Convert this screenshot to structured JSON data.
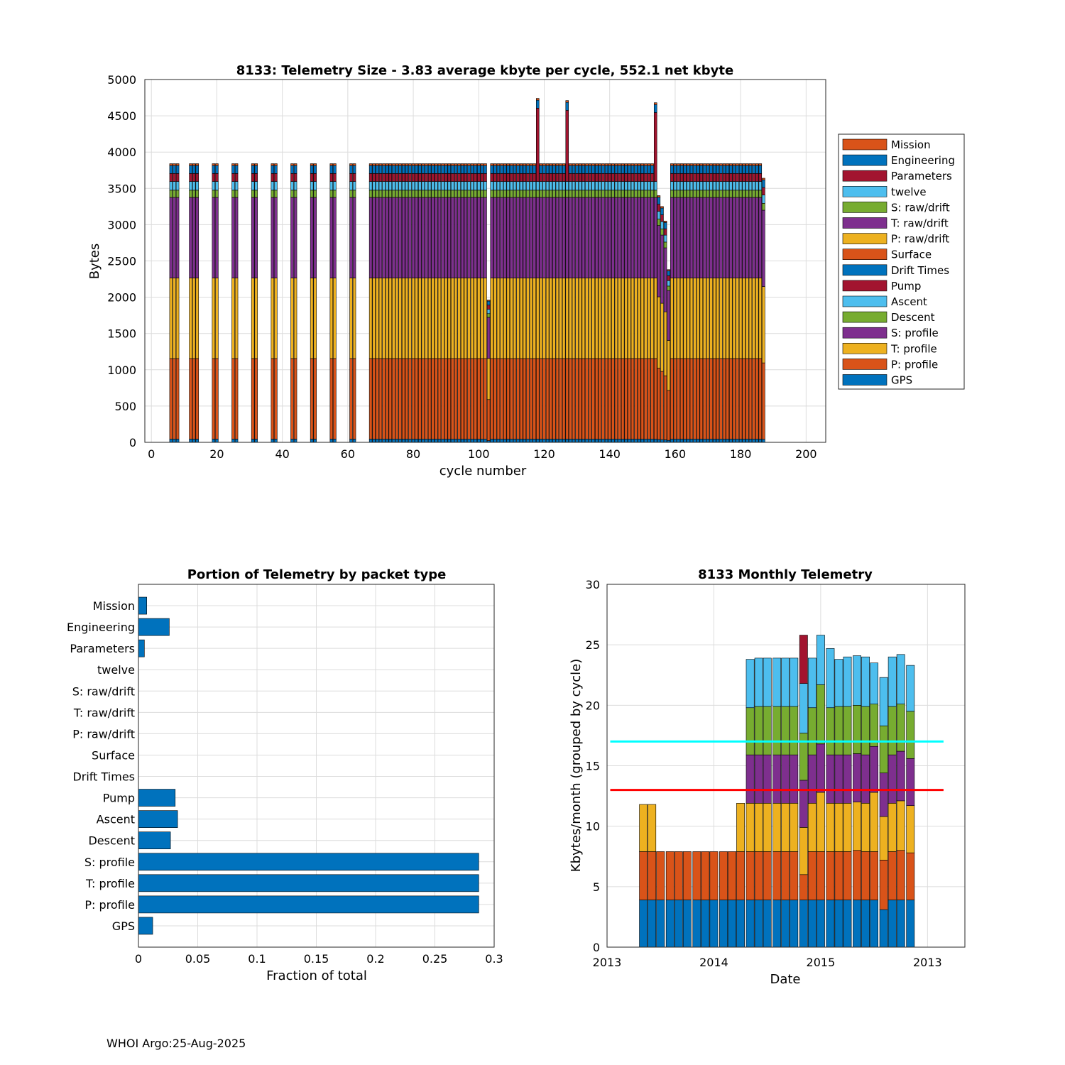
{
  "footer": "WHOI Argo:25-Aug-2025",
  "colors": {
    "blue": "#0072BD",
    "orange": "#D95319",
    "yellow": "#EDB120",
    "purple": "#7E2F8E",
    "green": "#77AC30",
    "cyan": "#4DBEEE",
    "red": "#A2142F",
    "grid": "#dcdcdc",
    "limit_cyan": "#00FFFF",
    "limit_red": "#FF0000"
  },
  "chart_data": [
    {
      "type": "bar",
      "stacked": true,
      "title": "8133: Telemetry Size - 3.83 average kbyte per cycle,  552.1 net kbyte",
      "xlabel": "cycle number",
      "ylabel": "Bytes",
      "xlim": [
        -2,
        206
      ],
      "ylim": [
        0,
        5000
      ],
      "xticks": [
        "0",
        "20",
        "40",
        "60",
        "80",
        "100",
        "120",
        "140",
        "160",
        "180",
        "200"
      ],
      "yticks": [
        "0",
        "500",
        "1000",
        "1500",
        "2000",
        "2500",
        "3000",
        "3500",
        "4000",
        "4500",
        "5000"
      ],
      "grid": true,
      "legend_position": "outside-right",
      "legend": [
        "Mission",
        "Engineering",
        "Parameters",
        "twelve",
        "S: raw/drift",
        "T: raw/drift",
        "P: raw/drift",
        "Surface",
        "Drift Times",
        "Pump",
        "Ascent",
        "Descent",
        "S: profile",
        "T: profile",
        "P: profile",
        "GPS"
      ],
      "cycles_in_groups": [
        [
          6,
          8
        ],
        [
          12,
          14
        ],
        [
          19,
          20
        ],
        [
          25,
          26
        ],
        [
          31,
          32
        ],
        [
          37,
          38
        ],
        [
          43,
          44
        ],
        [
          49,
          50
        ],
        [
          55,
          56
        ],
        [
          61,
          62
        ],
        [
          67,
          187
        ]
      ],
      "typical_cycle": {
        "GPS": 45,
        "P: profile": 1110,
        "T: profile": 1110,
        "S: profile": 1110,
        "Descent": 100,
        "Ascent": 120,
        "Pump": 110,
        "Engineering": 110,
        "Parameters": 0,
        "Mission": 25
      },
      "anomalies": [
        {
          "cycle": 103,
          "total": 1960
        },
        {
          "cycle": 118,
          "total": 4690,
          "pump": 1010
        },
        {
          "cycle": 127,
          "total": 4660,
          "pump": 980
        },
        {
          "cycle": 154,
          "total": 4610,
          "pump": 950
        },
        {
          "cycle": 155,
          "total": 3400
        },
        {
          "cycle": 156,
          "total": 3250
        },
        {
          "cycle": 157,
          "total": 3050
        },
        {
          "cycle": 158,
          "total": 2380
        },
        {
          "cycle": 187,
          "total": 3640
        }
      ]
    },
    {
      "type": "bar",
      "orientation": "horizontal",
      "title": "Portion of Telemetry by packet type",
      "xlabel": "Fraction of total",
      "xlim": [
        0,
        0.3
      ],
      "xticks": [
        "0",
        "0.05",
        "0.1",
        "0.15",
        "0.2",
        "0.25",
        "0.3"
      ],
      "grid": true,
      "categories": [
        "Mission",
        "Engineering",
        "Parameters",
        "twelve",
        "S: raw/drift",
        "T: raw/drift",
        "P: raw/drift",
        "Surface",
        "Drift Times",
        "Pump",
        "Ascent",
        "Descent",
        "S: profile",
        "T: profile",
        "P: profile",
        "GPS"
      ],
      "values": [
        0.007,
        0.026,
        0.005,
        0,
        0,
        0,
        0,
        0,
        0,
        0.031,
        0.033,
        0.027,
        0.287,
        0.287,
        0.287,
        0.012
      ]
    },
    {
      "type": "bar",
      "stacked": true,
      "title": "8133 Monthly Telemetry",
      "xlabel": "Date",
      "ylabel": "Kbytes/month (grouped by cycle)",
      "ylim": [
        0,
        30
      ],
      "yticks": [
        "0",
        "5",
        "10",
        "15",
        "20",
        "25",
        "30"
      ],
      "xtick_labels": [
        "2013",
        "2014",
        "2015",
        "2013"
      ],
      "xtick_positions": [
        0,
        1,
        2,
        3
      ],
      "xlim": [
        0,
        3.35
      ],
      "grid": true,
      "bar_positions": [
        0.34,
        0.42,
        0.5,
        0.59,
        0.67,
        0.75,
        0.84,
        0.92,
        1.0,
        1.09,
        1.17,
        1.25,
        1.34,
        1.42,
        1.5,
        1.59,
        1.67,
        1.75,
        1.84,
        1.92,
        2.0,
        2.09,
        2.17,
        2.25,
        2.34,
        2.42,
        2.5,
        2.59,
        2.67,
        2.75,
        2.84
      ],
      "series": [
        {
          "name": "GPS",
          "color": "blue",
          "values": [
            3.9,
            3.9,
            3.9,
            3.9,
            3.9,
            3.9,
            3.9,
            3.9,
            3.9,
            3.9,
            3.9,
            3.9,
            3.9,
            3.9,
            3.9,
            3.9,
            3.9,
            3.9,
            3.9,
            3.9,
            3.9,
            3.9,
            3.9,
            3.9,
            3.9,
            3.9,
            3.9,
            3.1,
            3.9,
            3.9,
            3.9
          ]
        },
        {
          "name": "P: profile",
          "color": "orange",
          "values": [
            4.0,
            4.0,
            4.0,
            4.0,
            4.0,
            4.0,
            4.0,
            4.0,
            4.0,
            4.0,
            4.0,
            4.0,
            4.0,
            4.0,
            4.0,
            4.0,
            4.0,
            4.0,
            2.1,
            4.0,
            4.0,
            4.0,
            4.0,
            4.0,
            4.1,
            4.0,
            4.0,
            4.1,
            4.0,
            4.1,
            3.9
          ]
        },
        {
          "name": "T: profile",
          "color": "yellow",
          "values": [
            3.9,
            3.9,
            0,
            0,
            0,
            0,
            0,
            0,
            0,
            0,
            0,
            4.0,
            4.0,
            4.0,
            4.0,
            4.0,
            4.0,
            4.0,
            3.9,
            4.0,
            4.9,
            4.0,
            4.0,
            4.0,
            4.0,
            4.0,
            4.9,
            3.6,
            4.0,
            4.1,
            3.9
          ]
        },
        {
          "name": "S: profile",
          "color": "purple",
          "values": [
            0,
            0,
            0,
            0,
            0,
            0,
            0,
            0,
            0,
            0,
            0,
            0,
            4.0,
            4.0,
            4.0,
            4.0,
            4.0,
            4.0,
            3.9,
            4.0,
            4.0,
            4.0,
            4.0,
            4.0,
            4.0,
            4.0,
            3.8,
            3.6,
            4.0,
            4.1,
            3.9
          ]
        },
        {
          "name": "Descent",
          "color": "green",
          "values": [
            0,
            0,
            0,
            0,
            0,
            0,
            0,
            0,
            0,
            0,
            0,
            0,
            3.9,
            4.0,
            4.0,
            4.0,
            4.0,
            4.0,
            3.9,
            3.9,
            4.9,
            3.9,
            4.0,
            4.0,
            4.0,
            4.0,
            3.5,
            3.9,
            4.0,
            3.9,
            3.9
          ]
        },
        {
          "name": "Ascent",
          "color": "cyan",
          "values": [
            0,
            0,
            0,
            0,
            0,
            0,
            0,
            0,
            0,
            0,
            0,
            0,
            4.0,
            4.0,
            4.0,
            4.0,
            4.0,
            4.0,
            4.1,
            4.1,
            4.1,
            4.9,
            3.9,
            4.1,
            4.1,
            4.1,
            3.4,
            4.0,
            4.1,
            4.1,
            3.8
          ]
        },
        {
          "name": "Pump",
          "color": "red",
          "values": [
            0,
            0,
            0,
            0,
            0,
            0,
            0,
            0,
            0,
            0,
            0,
            0,
            0,
            0,
            0,
            0,
            0,
            0,
            4.0,
            0,
            0,
            0,
            0,
            0,
            0,
            0,
            0,
            0,
            0,
            0,
            0
          ]
        }
      ],
      "hlines": [
        {
          "value": 17,
          "color": "limit_cyan"
        },
        {
          "value": 13,
          "color": "limit_red"
        }
      ]
    }
  ]
}
